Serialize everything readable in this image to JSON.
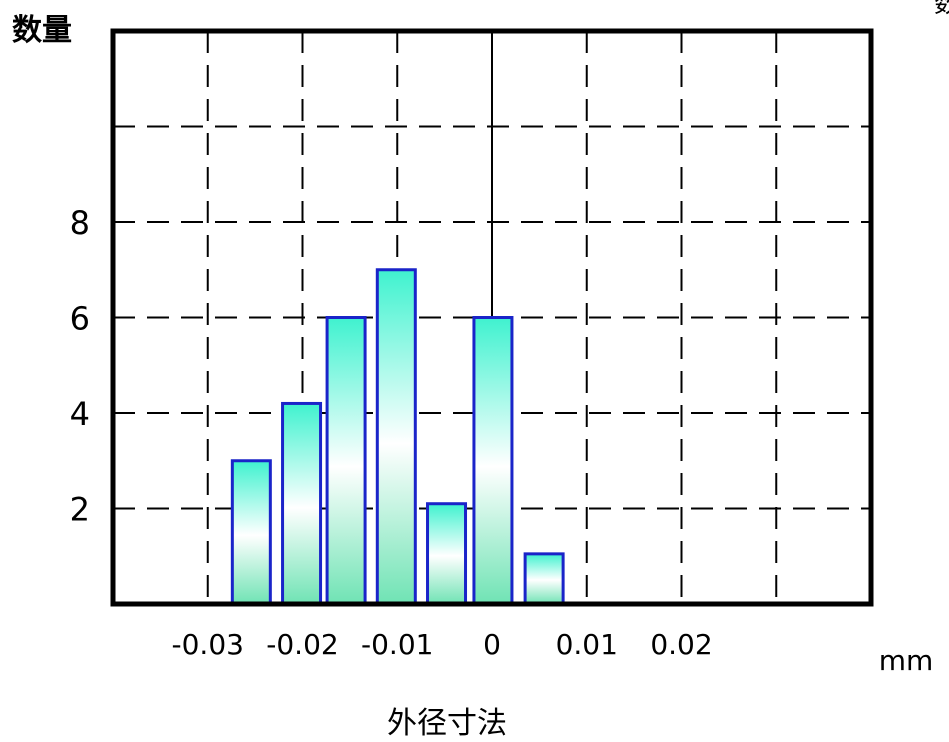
{
  "chart_data": {
    "type": "bar",
    "ylabel": "数量",
    "xlabel": "外径寸法",
    "x_unit": "mm",
    "corner_text": "数",
    "x_ticks": [
      {
        "value": -0.03,
        "label": "-0.03"
      },
      {
        "value": -0.02,
        "label": "-0.02"
      },
      {
        "value": -0.01,
        "label": "-0.01"
      },
      {
        "value": 0,
        "label": "0"
      },
      {
        "value": 0.01,
        "label": "0.01"
      },
      {
        "value": 0.02,
        "label": "0.02"
      }
    ],
    "y_ticks": [
      2,
      4,
      6,
      8
    ],
    "xlim": [
      -0.04,
      0.04
    ],
    "ylim": [
      0,
      12
    ],
    "grid": true,
    "bars": [
      {
        "x": -0.0254,
        "value": 3
      },
      {
        "x": -0.0201,
        "value": 4.2
      },
      {
        "x": -0.0154,
        "value": 6
      },
      {
        "x": -0.0101,
        "value": 7
      },
      {
        "x": -0.0048,
        "value": 2.1
      },
      {
        "x": 0.0001,
        "value": 6
      },
      {
        "x": 0.0055,
        "value": 1.05
      }
    ],
    "colors": {
      "bar_top": "#3ff2cf",
      "bar_mid": "#ffffff",
      "bar_bottom": "#6fe3b4",
      "bar_stroke": "#1a24c9",
      "grid": "#000000"
    }
  }
}
